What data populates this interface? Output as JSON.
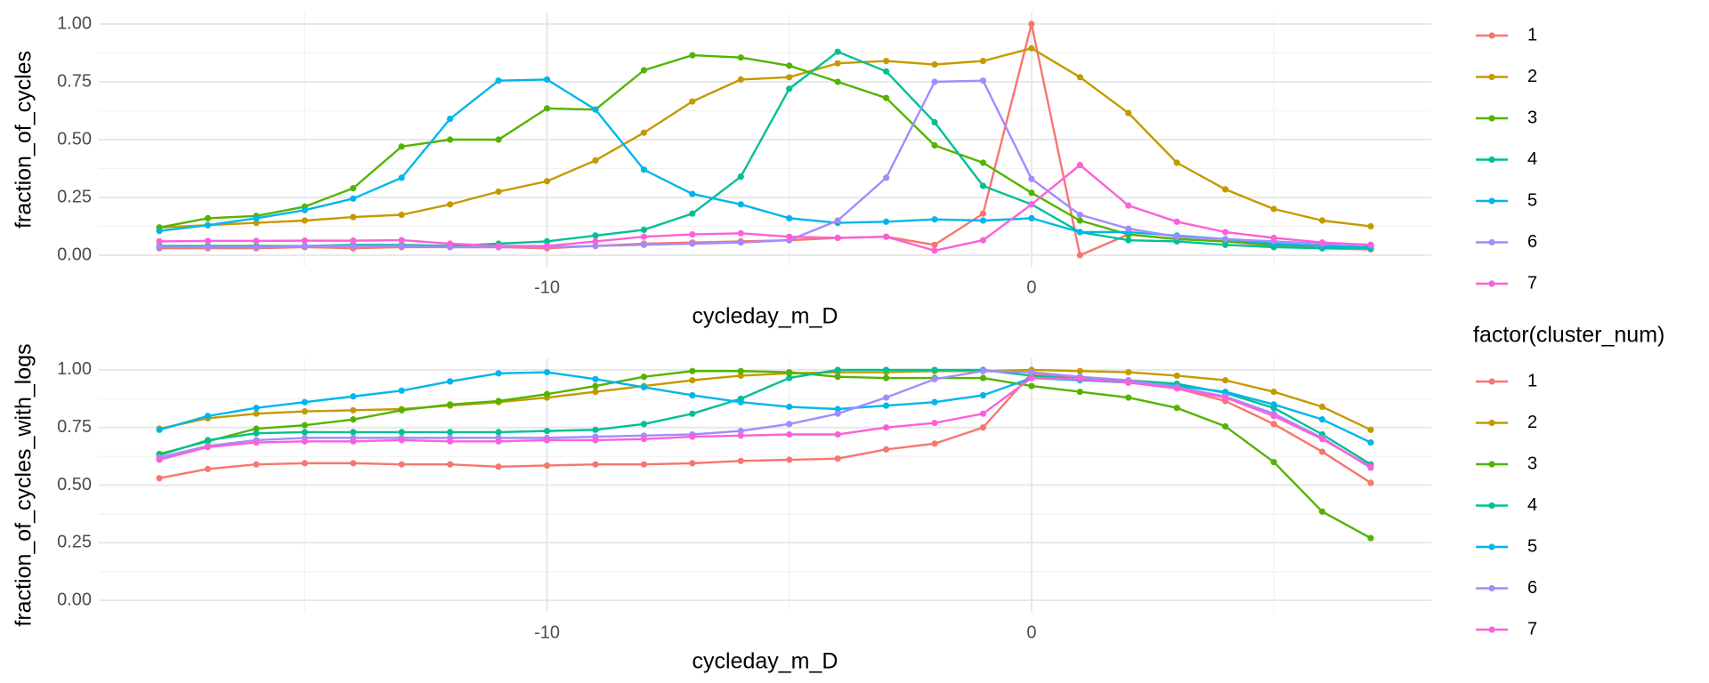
{
  "chart_data": [
    {
      "type": "line",
      "xlabel": "cycleday_m_D",
      "ylabel": "fraction_of_cycles",
      "x": [
        -18,
        -17,
        -16,
        -15,
        -14,
        -13,
        -12,
        -11,
        -10,
        -9,
        -8,
        -7,
        -6,
        -5,
        -4,
        -3,
        -2,
        -1,
        0,
        1,
        2,
        3,
        4,
        5,
        6,
        7
      ],
      "xlim": [
        -19.25,
        8.25
      ],
      "xticks": [
        -10,
        0
      ],
      "ylim": [
        -0.05,
        1.05
      ],
      "yticks": [
        {
          "value": 0,
          "label": "0.00"
        },
        {
          "value": 0.25,
          "label": "0.25"
        },
        {
          "value": 0.5,
          "label": "0.50"
        },
        {
          "value": 0.75,
          "label": "0.75"
        },
        {
          "value": 1,
          "label": "1.00"
        }
      ],
      "grid": true,
      "series": [
        {
          "name": "1",
          "color": "#F8766D",
          "values": [
            0.03,
            0.03,
            0.03,
            0.035,
            0.03,
            0.035,
            0.035,
            0.035,
            0.03,
            0.04,
            0.05,
            0.055,
            0.06,
            0.065,
            0.075,
            0.08,
            0.045,
            0.18,
            1.0,
            0.0,
            0.09,
            0.07,
            0.06,
            0.04,
            0.03,
            0.025
          ]
        },
        {
          "name": "2",
          "color": "#C49A00",
          "values": [
            0.12,
            0.13,
            0.14,
            0.15,
            0.165,
            0.175,
            0.22,
            0.275,
            0.32,
            0.41,
            0.53,
            0.665,
            0.76,
            0.77,
            0.83,
            0.84,
            0.825,
            0.84,
            0.895,
            0.77,
            0.615,
            0.4,
            0.285,
            0.2,
            0.15,
            0.125
          ]
        },
        {
          "name": "3",
          "color": "#53B400",
          "values": [
            0.12,
            0.16,
            0.17,
            0.21,
            0.29,
            0.47,
            0.5,
            0.5,
            0.635,
            0.63,
            0.8,
            0.865,
            0.855,
            0.82,
            0.75,
            0.68,
            0.475,
            0.4,
            0.27,
            0.15,
            0.09,
            0.07,
            0.06,
            0.045,
            0.04,
            0.035
          ]
        },
        {
          "name": "4",
          "color": "#00C094",
          "values": [
            0.04,
            0.04,
            0.04,
            0.04,
            0.045,
            0.045,
            0.04,
            0.05,
            0.06,
            0.085,
            0.11,
            0.18,
            0.34,
            0.72,
            0.88,
            0.795,
            0.575,
            0.3,
            0.22,
            0.1,
            0.065,
            0.06,
            0.045,
            0.035,
            0.03,
            0.03
          ]
        },
        {
          "name": "5",
          "color": "#00B6EB",
          "values": [
            0.105,
            0.13,
            0.16,
            0.195,
            0.245,
            0.335,
            0.59,
            0.755,
            0.76,
            0.63,
            0.37,
            0.265,
            0.22,
            0.16,
            0.14,
            0.145,
            0.155,
            0.15,
            0.16,
            0.1,
            0.1,
            0.085,
            0.07,
            0.05,
            0.04,
            0.035
          ]
        },
        {
          "name": "6",
          "color": "#A58AFF",
          "values": [
            0.035,
            0.035,
            0.035,
            0.04,
            0.04,
            0.04,
            0.035,
            0.035,
            0.035,
            0.04,
            0.045,
            0.05,
            0.055,
            0.065,
            0.15,
            0.335,
            0.75,
            0.755,
            0.33,
            0.175,
            0.115,
            0.08,
            0.07,
            0.06,
            0.05,
            0.045
          ]
        },
        {
          "name": "7",
          "color": "#FB61D7",
          "values": [
            0.06,
            0.062,
            0.062,
            0.063,
            0.063,
            0.065,
            0.05,
            0.04,
            0.04,
            0.06,
            0.08,
            0.09,
            0.095,
            0.08,
            0.075,
            0.08,
            0.02,
            0.065,
            0.22,
            0.39,
            0.215,
            0.145,
            0.1,
            0.075,
            0.055,
            0.045
          ]
        }
      ]
    },
    {
      "type": "line",
      "xlabel": "cycleday_m_D",
      "ylabel": "fraction_of_cycles_with_logs",
      "legend_title": "factor(cluster_num)",
      "x": [
        -18,
        -17,
        -16,
        -15,
        -14,
        -13,
        -12,
        -11,
        -10,
        -9,
        -8,
        -7,
        -6,
        -5,
        -4,
        -3,
        -2,
        -1,
        0,
        1,
        2,
        3,
        4,
        5,
        6,
        7
      ],
      "xlim": [
        -19.25,
        8.25
      ],
      "xticks": [
        -10,
        0
      ],
      "ylim": [
        -0.05,
        1.05
      ],
      "yticks": [
        {
          "value": 0,
          "label": "0.00"
        },
        {
          "value": 0.25,
          "label": "0.25"
        },
        {
          "value": 0.5,
          "label": "0.50"
        },
        {
          "value": 0.75,
          "label": "0.75"
        },
        {
          "value": 1,
          "label": "1.00"
        }
      ],
      "grid": true,
      "series": [
        {
          "name": "1",
          "color": "#F8766D",
          "values": [
            0.53,
            0.57,
            0.59,
            0.595,
            0.595,
            0.59,
            0.59,
            0.58,
            0.585,
            0.59,
            0.59,
            0.595,
            0.605,
            0.61,
            0.615,
            0.655,
            0.68,
            0.75,
            0.985,
            0.965,
            0.945,
            0.92,
            0.865,
            0.765,
            0.645,
            0.51
          ]
        },
        {
          "name": "2",
          "color": "#C49A00",
          "values": [
            0.745,
            0.79,
            0.81,
            0.82,
            0.825,
            0.83,
            0.845,
            0.86,
            0.88,
            0.905,
            0.93,
            0.955,
            0.975,
            0.985,
            0.99,
            0.99,
            0.995,
            0.995,
            1.0,
            0.995,
            0.99,
            0.975,
            0.955,
            0.905,
            0.84,
            0.74
          ]
        },
        {
          "name": "3",
          "color": "#53B400",
          "values": [
            0.635,
            0.69,
            0.745,
            0.76,
            0.785,
            0.825,
            0.85,
            0.865,
            0.895,
            0.93,
            0.97,
            0.995,
            0.995,
            0.99,
            0.97,
            0.965,
            0.965,
            0.965,
            0.93,
            0.905,
            0.88,
            0.835,
            0.755,
            0.6,
            0.385,
            0.27
          ]
        },
        {
          "name": "4",
          "color": "#00C094",
          "values": [
            0.63,
            0.695,
            0.725,
            0.73,
            0.73,
            0.73,
            0.73,
            0.73,
            0.735,
            0.74,
            0.765,
            0.81,
            0.875,
            0.965,
            1.0,
            1.0,
            1.0,
            1.0,
            0.975,
            0.96,
            0.955,
            0.94,
            0.9,
            0.835,
            0.72,
            0.59
          ]
        },
        {
          "name": "5",
          "color": "#00B6EB",
          "values": [
            0.74,
            0.8,
            0.835,
            0.86,
            0.885,
            0.91,
            0.95,
            0.985,
            0.99,
            0.96,
            0.925,
            0.89,
            0.86,
            0.84,
            0.83,
            0.845,
            0.86,
            0.89,
            0.965,
            0.955,
            0.945,
            0.93,
            0.905,
            0.85,
            0.785,
            0.685
          ]
        },
        {
          "name": "6",
          "color": "#A58AFF",
          "values": [
            0.62,
            0.67,
            0.695,
            0.705,
            0.705,
            0.705,
            0.705,
            0.705,
            0.705,
            0.71,
            0.715,
            0.72,
            0.735,
            0.765,
            0.81,
            0.88,
            0.96,
            0.995,
            0.99,
            0.97,
            0.955,
            0.925,
            0.885,
            0.81,
            0.705,
            0.575
          ]
        },
        {
          "name": "7",
          "color": "#FB61D7",
          "values": [
            0.61,
            0.665,
            0.685,
            0.69,
            0.69,
            0.695,
            0.69,
            0.69,
            0.695,
            0.695,
            0.7,
            0.71,
            0.715,
            0.72,
            0.72,
            0.75,
            0.77,
            0.81,
            0.965,
            0.96,
            0.945,
            0.92,
            0.88,
            0.8,
            0.7,
            0.58
          ]
        }
      ]
    }
  ]
}
